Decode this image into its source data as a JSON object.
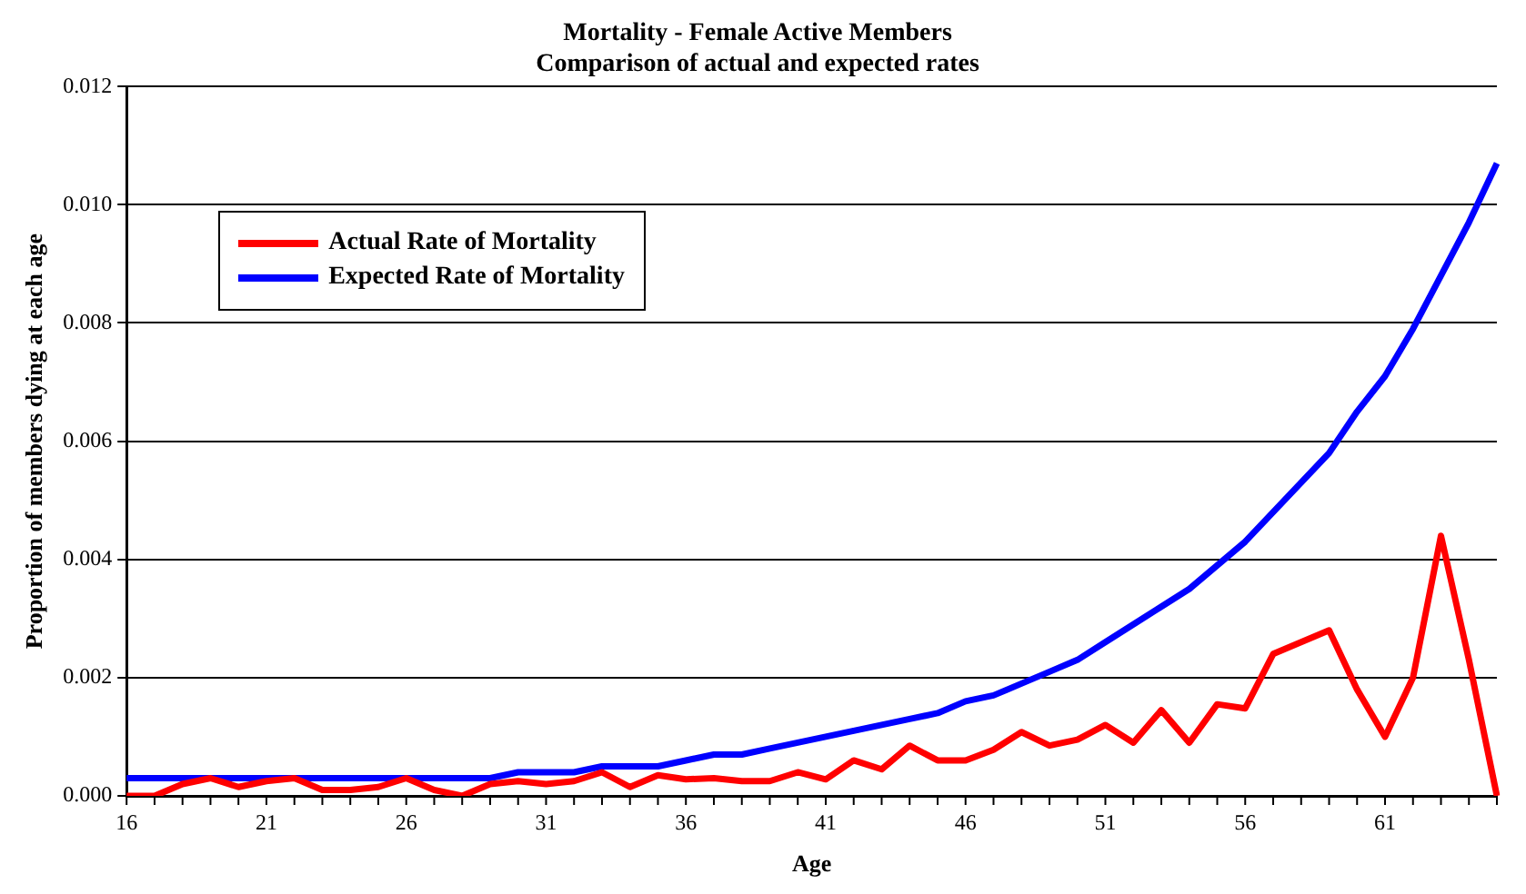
{
  "chart_data": {
    "type": "line",
    "title": "Mortality - Female Active Members",
    "subtitle": "Comparison of actual and expected rates",
    "xlabel": "Age",
    "ylabel": "Proportion of members dying at each age",
    "categories": [
      "16",
      null,
      null,
      null,
      null,
      "21",
      null,
      null,
      null,
      null,
      "26",
      null,
      null,
      null,
      null,
      "31",
      null,
      null,
      null,
      null,
      "36",
      null,
      null,
      null,
      null,
      "41",
      null,
      null,
      null,
      null,
      "46",
      null,
      null,
      null,
      null,
      "51",
      null,
      null,
      null,
      null,
      "56",
      null,
      null,
      null,
      null,
      "61",
      null,
      null,
      null,
      null
    ],
    "series": [
      {
        "name": "Actual Rate of Mortality",
        "color": "#ff0000",
        "values": [
          0,
          0,
          0.0002,
          0.0003,
          0.00015,
          0.00025,
          0.0003,
          0.0001,
          0.0001,
          0.00015,
          0.0003,
          0.0001,
          0,
          0.0002,
          0.00025,
          0.0002,
          0.00025,
          0.0004,
          0.00015,
          0.00035,
          0.00028,
          0.0003,
          0.00025,
          0.00025,
          0.0004,
          0.00028,
          0.0006,
          0.00045,
          0.00085,
          0.0006,
          0.0006,
          0.00078,
          0.00108,
          0.00085,
          0.00095,
          0.0012,
          0.0009,
          0.00145,
          0.0009,
          0.00155,
          0.00148,
          0.0024,
          0.0026,
          0.0028,
          0.0018,
          0.001,
          0.002,
          0.0044,
          0.0023,
          0
        ]
      },
      {
        "name": "Expected Rate of Mortality",
        "color": "#0000ff",
        "values": [
          0.0003,
          0.0003,
          0.0003,
          0.0003,
          0.0003,
          0.0003,
          0.0003,
          0.0003,
          0.0003,
          0.0003,
          0.0003,
          0.0003,
          0.0003,
          0.0003,
          0.0004,
          0.0004,
          0.0004,
          0.0005,
          0.0005,
          0.0005,
          0.0006,
          0.0007,
          0.0007,
          0.0008,
          0.0009,
          0.001,
          0.0011,
          0.0012,
          0.0013,
          0.0014,
          0.0016,
          0.0017,
          0.0019,
          0.0021,
          0.0023,
          0.0026,
          0.0029,
          0.0032,
          0.0035,
          0.0039,
          0.0043,
          0.0048,
          0.0053,
          0.0058,
          0.0065,
          0.0071,
          0.0079,
          0.0088,
          0.0097,
          0.0107
        ]
      }
    ],
    "ylim": [
      0,
      0.012
    ],
    "yticks": [
      {
        "value": 0,
        "label": "0.000"
      },
      {
        "value": 0.002,
        "label": "0.002"
      },
      {
        "value": 0.004,
        "label": "0.004"
      },
      {
        "value": 0.006,
        "label": "0.006"
      },
      {
        "value": 0.008,
        "label": "0.008"
      },
      {
        "value": 0.01,
        "label": "0.010"
      },
      {
        "value": 0.012,
        "label": "0.012"
      }
    ],
    "grid": "y",
    "legend": "top left",
    "marker": "none",
    "line_style": "solid"
  }
}
